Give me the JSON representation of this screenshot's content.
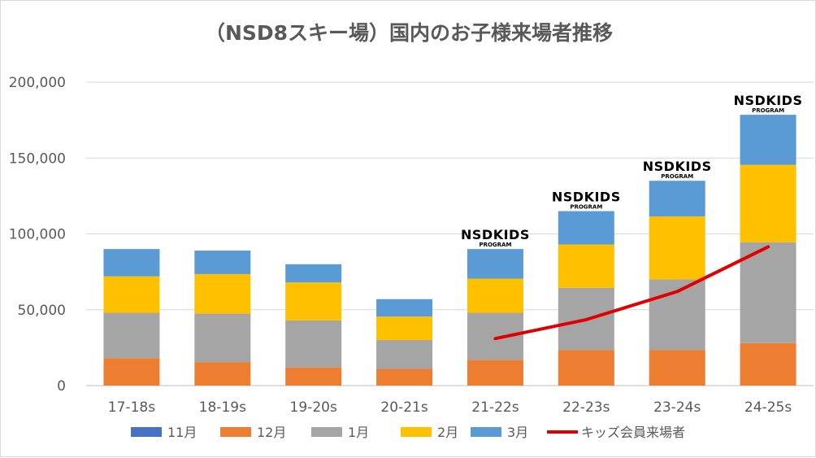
{
  "chart_data": {
    "type": "bar",
    "stacked": true,
    "title": "（NSD8スキー場）国内のお子様来場者推移",
    "categories": [
      "17-18s",
      "18-19s",
      "19-20s",
      "20-21s",
      "21-22s",
      "22-23s",
      "23-24s",
      "24-25s"
    ],
    "ylim": [
      0,
      200000
    ],
    "yticks": [
      {
        "value": 0,
        "label": "0"
      },
      {
        "value": 50000,
        "label": "50,000"
      },
      {
        "value": 100000,
        "label": "100,000"
      },
      {
        "value": 150000,
        "label": "150,000"
      },
      {
        "value": 200000,
        "label": "200,000"
      }
    ],
    "grid": true,
    "legend_position": "bottom",
    "series": [
      {
        "name": "11月",
        "type": "bar",
        "color": "#4472c4",
        "values": [
          0,
          0,
          0,
          0,
          0,
          0,
          0,
          0
        ]
      },
      {
        "name": "12月",
        "type": "bar",
        "color": "#ed7d31",
        "values": [
          18000,
          15500,
          12000,
          11000,
          17000,
          23500,
          23500,
          28000
        ]
      },
      {
        "name": "1月",
        "type": "bar",
        "color": "#a5a5a5",
        "values": [
          30000,
          32000,
          31000,
          19000,
          31000,
          41000,
          46500,
          66500
        ]
      },
      {
        "name": "2月",
        "type": "bar",
        "color": "#ffc000",
        "values": [
          24000,
          26000,
          25000,
          15500,
          22500,
          28500,
          41500,
          51000
        ]
      },
      {
        "name": "3月",
        "type": "bar",
        "color": "#5b9bd5",
        "values": [
          18000,
          15500,
          12000,
          11500,
          19500,
          22000,
          23500,
          33000
        ]
      },
      {
        "name": "キッズ会員来場者",
        "type": "line",
        "color": "#e00000",
        "values": [
          null,
          null,
          null,
          null,
          31000,
          43500,
          62000,
          91500
        ]
      }
    ],
    "annotations": [
      {
        "category": "21-22s",
        "text": "NSDKIDS",
        "subtext": "PROGRAM"
      },
      {
        "category": "22-23s",
        "text": "NSDKIDS",
        "subtext": "PROGRAM"
      },
      {
        "category": "23-24s",
        "text": "NSDKIDS",
        "subtext": "PROGRAM"
      },
      {
        "category": "24-25s",
        "text": "NSDKIDS",
        "subtext": "PROGRAM"
      }
    ]
  }
}
